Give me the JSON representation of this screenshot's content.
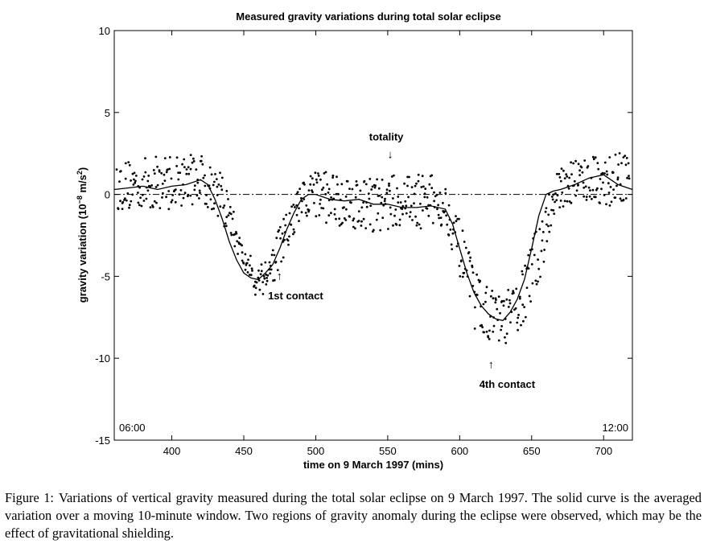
{
  "chart_data": {
    "type": "scatter",
    "title": "Measured gravity variations during total solar eclipse",
    "xlabel": "time on 9 March 1997 (mins)",
    "ylabel": "gravity variation (10",
    "ylabel_exponent": "−8",
    "ylabel_unit": " m/s",
    "ylabel_unit_exponent": "2",
    "ylabel_close": ")",
    "xlim": [
      360,
      720
    ],
    "ylim": [
      -15,
      10
    ],
    "xticks": [
      400,
      450,
      500,
      550,
      600,
      650,
      700
    ],
    "yticks": [
      10,
      5,
      0,
      -5,
      -10,
      -15
    ],
    "grid": false,
    "reference_line": {
      "y": 0,
      "style": "dash-dot"
    },
    "corner_labels": {
      "left": "06:00",
      "right": "12:00"
    },
    "annotations": [
      {
        "text": "totality",
        "x": 549,
        "y": 3.5,
        "arrow": "↓",
        "arrow_y": 2.5
      },
      {
        "text": "1st contact",
        "x": 486,
        "y": -6.2,
        "arrow": "↑",
        "arrow_y": -4.9
      },
      {
        "text": "4th contact",
        "x": 633,
        "y": -11.6,
        "arrow": "↑",
        "arrow_y": -10.3
      }
    ],
    "series": [
      {
        "name": "averaged variation (moving 10-minute window)",
        "style": "line",
        "x": [
          360,
          370,
          380,
          390,
          400,
          410,
          420,
          425,
          430,
          435,
          440,
          445,
          450,
          455,
          460,
          465,
          470,
          475,
          480,
          485,
          490,
          495,
          500,
          510,
          520,
          530,
          540,
          550,
          560,
          570,
          580,
          590,
          595,
          600,
          605,
          610,
          615,
          620,
          625,
          630,
          635,
          640,
          645,
          650,
          655,
          660,
          665,
          670,
          680,
          690,
          700,
          710,
          720
        ],
        "y": [
          0.3,
          0.4,
          0.5,
          0.3,
          0.5,
          0.6,
          0.9,
          0.6,
          -0.3,
          -1.5,
          -2.9,
          -4.0,
          -4.8,
          -5.1,
          -5.2,
          -4.8,
          -4.3,
          -3.3,
          -2.1,
          -1.1,
          -0.3,
          0.0,
          0.0,
          -0.3,
          -0.4,
          -0.3,
          -0.6,
          -0.6,
          -0.8,
          -0.8,
          -0.7,
          -0.9,
          -1.8,
          -3.3,
          -4.8,
          -6.0,
          -6.8,
          -7.3,
          -7.6,
          -7.7,
          -7.2,
          -6.4,
          -5.2,
          -3.3,
          -1.3,
          0.0,
          0.2,
          0.3,
          0.6,
          1.0,
          1.2,
          0.6,
          0.3
        ]
      },
      {
        "name": "measurements",
        "style": "points",
        "band_x": [
          360,
          400,
          420,
          430,
          440,
          450,
          460,
          470,
          480,
          490,
          500,
          520,
          540,
          560,
          580,
          590,
          600,
          610,
          620,
          630,
          640,
          650,
          660,
          670,
          680,
          700,
          720
        ],
        "band_lo": [
          -1.0,
          -0.9,
          -0.5,
          -1.2,
          -2.5,
          -4.6,
          -6.6,
          -5.6,
          -3.9,
          -1.9,
          -1.6,
          -2.0,
          -2.3,
          -2.0,
          -2.2,
          -1.9,
          -5.0,
          -8.3,
          -8.8,
          -9.3,
          -8.6,
          -7.0,
          -3.8,
          -0.8,
          -0.5,
          -0.6,
          -1.0
        ],
        "band_hi": [
          2.0,
          2.5,
          2.5,
          2.1,
          0.0,
          -3.4,
          -4.0,
          -3.0,
          -0.9,
          0.8,
          1.6,
          1.3,
          1.1,
          1.2,
          1.3,
          0.7,
          -1.6,
          -4.5,
          -5.7,
          -6.2,
          -5.2,
          -3.0,
          0.3,
          1.6,
          2.4,
          2.4,
          2.6
        ],
        "count": 760
      }
    ]
  },
  "caption": {
    "label": "Figure 1:",
    "text": "Variations of vertical gravity measured during the total solar eclipse on 9 March 1997. The solid curve is the averaged variation over a moving 10-minute window. Two regions of gravity anomaly during the eclipse were observed, which may be the effect of gravitational shielding."
  }
}
